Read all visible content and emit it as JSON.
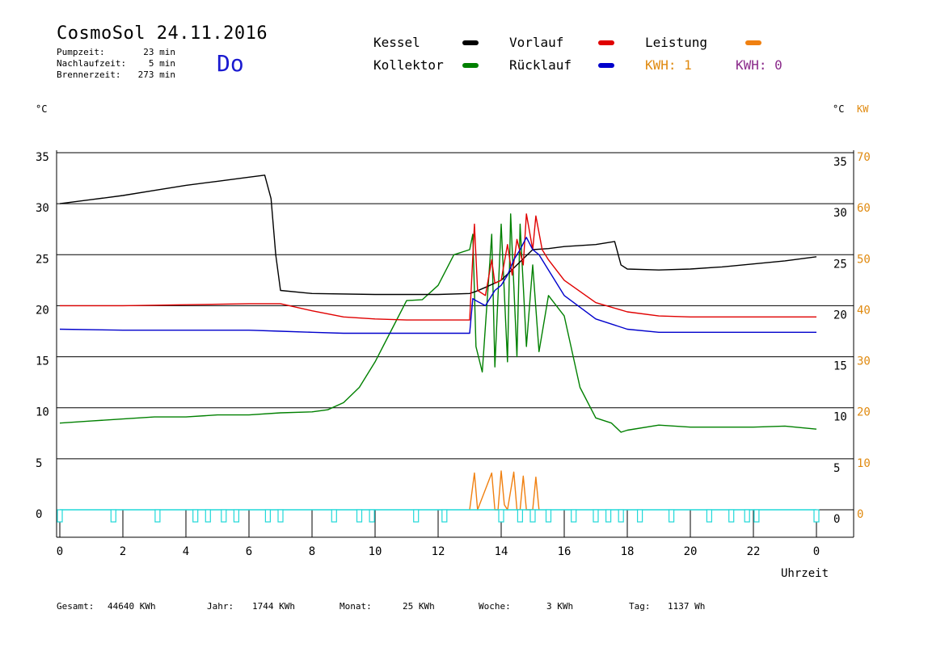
{
  "header": {
    "title": "CosmoSol 24.11.2016",
    "weekday": "Do",
    "stats": [
      {
        "label": "Pumpzeit:",
        "value": "23 min"
      },
      {
        "label": "Nachlaufzeit:",
        "value": "5 min"
      },
      {
        "label": "Brennerzeit:",
        "value": "273 min"
      }
    ]
  },
  "legend": {
    "kessel": {
      "label": "Kessel",
      "color": "#000000"
    },
    "vorlauf": {
      "label": "Vorlauf",
      "color": "#e00000"
    },
    "leistung": {
      "label": "Leistung",
      "color": "#f08010"
    },
    "kollektor": {
      "label": "Kollektor",
      "color": "#008000"
    },
    "ruecklauf": {
      "label": "Rücklauf",
      "color": "#0000cc"
    },
    "kwh1": {
      "label": "KWH: 1",
      "color": "#e08a10"
    },
    "kwh2": {
      "label": "KWH: 0",
      "color": "#8a2a8a"
    }
  },
  "axes": {
    "left_unit": "°C",
    "right_unit_c": "°C",
    "right_unit_kw": "KW",
    "x_label": "Uhrzeit"
  },
  "footer": [
    {
      "label": "Gesamt:",
      "value": "44640 KWh"
    },
    {
      "label": "Jahr:",
      "value": "1744 KWh"
    },
    {
      "label": "Monat:",
      "value": "25 KWh"
    },
    {
      "label": "Woche:",
      "value": "3 KWh"
    },
    {
      "label": "Tag:",
      "value": "1137 Wh"
    }
  ],
  "chart_data": {
    "type": "line",
    "x_ticks": [
      "0",
      "2",
      "4",
      "6",
      "8",
      "10",
      "12",
      "14",
      "16",
      "18",
      "20",
      "22",
      "0"
    ],
    "y_ticks_temp": [
      "0",
      "5",
      "10",
      "15",
      "20",
      "25",
      "30",
      "35"
    ],
    "y_ticks_temp_right": [
      "0",
      "5",
      "10",
      "15",
      "20",
      "25",
      "30",
      "35"
    ],
    "y_ticks_kw": [
      "0",
      "10",
      "20",
      "30",
      "40",
      "50",
      "60",
      "70"
    ],
    "xlim": [
      0,
      24
    ],
    "ylim": [
      0,
      35
    ],
    "series": [
      {
        "name": "Kessel",
        "color": "#000000",
        "x": [
          0,
          1,
          2,
          3,
          4,
          5,
          6,
          6.5,
          6.7,
          6.85,
          7.0,
          8.0,
          10,
          12,
          13.0,
          13.2,
          13.5,
          14.0,
          14.5,
          15.0,
          15.5,
          16,
          17,
          17.6,
          17.8,
          18.0,
          19,
          20,
          21,
          22,
          23,
          24
        ],
        "y": [
          30,
          30.4,
          30.8,
          31.3,
          31.8,
          32.2,
          32.6,
          32.8,
          30.5,
          25,
          21.5,
          21.2,
          21.1,
          21.1,
          21.2,
          21.4,
          21.8,
          22.5,
          24,
          25.5,
          25.6,
          25.8,
          26.0,
          26.3,
          24.0,
          23.6,
          23.5,
          23.6,
          23.8,
          24.1,
          24.4,
          24.8
        ]
      },
      {
        "name": "Vorlauf",
        "color": "#e00000",
        "x": [
          0,
          2,
          4,
          6,
          7,
          8,
          9,
          10,
          11,
          12,
          13.0,
          13.15,
          13.25,
          13.5,
          13.7,
          13.8,
          14.0,
          14.2,
          14.35,
          14.5,
          14.7,
          14.8,
          15.0,
          15.1,
          15.3,
          15.5,
          16,
          17,
          18,
          19,
          20,
          22,
          24
        ],
        "y": [
          20,
          20,
          20.1,
          20.2,
          20.2,
          19.5,
          18.9,
          18.7,
          18.6,
          18.6,
          18.6,
          28,
          21.5,
          21,
          24.5,
          22.2,
          22.5,
          26,
          23,
          26.5,
          24,
          29,
          25.5,
          28.8,
          25.5,
          24.5,
          22.5,
          20.3,
          19.4,
          19.0,
          18.9,
          18.9,
          18.9
        ]
      },
      {
        "name": "Rücklauf",
        "color": "#0000cc",
        "x": [
          0,
          2,
          4,
          6,
          7,
          8,
          9,
          10,
          11,
          12,
          13.0,
          13.1,
          13.2,
          13.5,
          13.8,
          14.0,
          14.2,
          14.4,
          14.6,
          14.8,
          15.0,
          15.2,
          15.5,
          16,
          17,
          18,
          19,
          20,
          22,
          24
        ],
        "y": [
          17.7,
          17.6,
          17.6,
          17.6,
          17.5,
          17.4,
          17.3,
          17.3,
          17.3,
          17.3,
          17.3,
          20.7,
          20.5,
          20.0,
          21.5,
          22.0,
          23.0,
          24.5,
          25.5,
          26.7,
          25.5,
          25.0,
          23.5,
          21.0,
          18.7,
          17.7,
          17.4,
          17.4,
          17.4,
          17.4
        ]
      },
      {
        "name": "Kollektor",
        "color": "#008000",
        "x": [
          0,
          1,
          2,
          3,
          4,
          5,
          6,
          7,
          8,
          8.5,
          9,
          9.5,
          10,
          10.5,
          11,
          11.5,
          12,
          12.5,
          13.0,
          13.1,
          13.2,
          13.4,
          13.7,
          13.8,
          14.0,
          14.2,
          14.3,
          14.5,
          14.6,
          14.8,
          15.0,
          15.2,
          15.5,
          16,
          16.5,
          17,
          17.5,
          17.8,
          18.0,
          19,
          20,
          21,
          22,
          23,
          24
        ],
        "y": [
          8.5,
          8.7,
          8.9,
          9.1,
          9.1,
          9.3,
          9.3,
          9.5,
          9.6,
          9.8,
          10.5,
          12,
          14.5,
          17.5,
          20.5,
          20.6,
          22,
          25.0,
          25.5,
          27,
          16,
          13.5,
          27,
          14,
          28,
          14.5,
          29,
          15,
          28,
          16,
          24,
          15.5,
          21,
          19,
          12,
          9,
          8.5,
          7.6,
          7.8,
          8.3,
          8.1,
          8.1,
          8.1,
          8.2,
          7.9
        ]
      },
      {
        "name": "Leistung",
        "color": "#f08010",
        "x": [
          13.0,
          13.15,
          13.25,
          13.7,
          13.8,
          13.9,
          14.0,
          14.1,
          14.2,
          14.4,
          14.5,
          14.6,
          14.7,
          14.8,
          15.0,
          15.1,
          15.2
        ],
        "y": [
          0,
          3.6,
          0,
          3.6,
          0,
          0,
          3.8,
          0.5,
          0,
          3.7,
          0,
          0,
          3.3,
          0,
          0,
          3.2,
          0
        ]
      },
      {
        "name": "Pumpe",
        "color": "#20d8d8",
        "x": [
          0,
          1.7,
          3.1,
          4.3,
          4.7,
          5.2,
          5.6,
          6.6,
          7.0,
          8.7,
          9.5,
          9.9,
          11.3,
          12.2,
          14.0,
          14.6,
          15.0,
          15.5,
          16.3,
          17.0,
          17.4,
          17.8,
          18.4,
          19.4,
          20.6,
          21.3,
          21.8,
          22.1,
          24.0
        ],
        "y": [
          0,
          0,
          0,
          0,
          0,
          0,
          0,
          0,
          0,
          0,
          0,
          0,
          0,
          0,
          0,
          0,
          0,
          0,
          0,
          0,
          0,
          0,
          0,
          0,
          0,
          0,
          0,
          0,
          0
        ]
      }
    ]
  }
}
